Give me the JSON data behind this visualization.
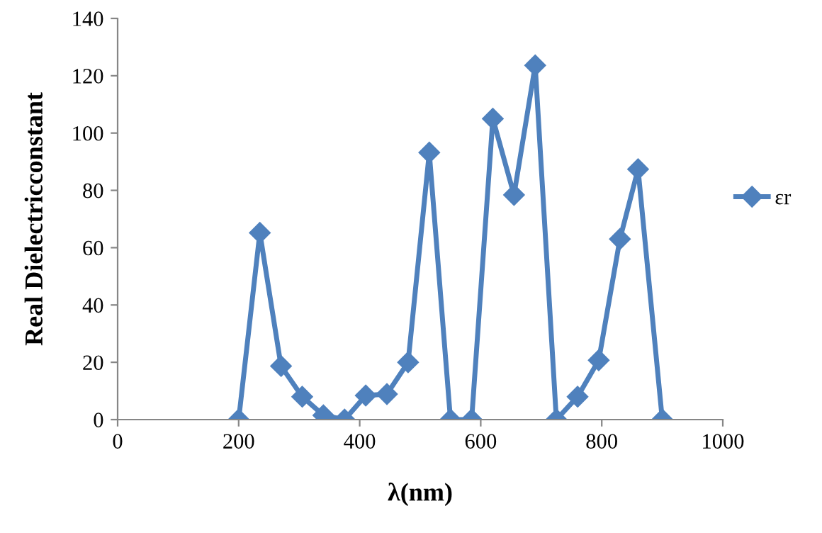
{
  "chart_data": {
    "type": "line",
    "xlabel": "λ(nm)",
    "ylabel": "Real Dielectricconstant",
    "x": [
      200,
      235,
      270,
      305,
      340,
      375,
      410,
      445,
      480,
      515,
      550,
      585,
      620,
      655,
      690,
      725,
      760,
      795,
      830,
      860,
      900
    ],
    "series": [
      {
        "name": "εr",
        "color": "#4f81bd",
        "values": [
          0,
          65.2,
          18.7,
          8,
          1.5,
          0,
          8.4,
          8.9,
          20,
          93.2,
          0,
          0,
          105,
          78.4,
          123.6,
          0,
          8,
          20.7,
          63,
          87.4,
          0
        ]
      }
    ],
    "xlim": [
      0,
      1000
    ],
    "xticks": [
      0,
      200,
      400,
      600,
      800,
      1000
    ],
    "ylim": [
      0,
      140
    ],
    "yticks": [
      0,
      20,
      40,
      60,
      80,
      100,
      120,
      140
    ],
    "marker": "diamond",
    "line_style": "solid",
    "legend": "right",
    "grid": false
  }
}
